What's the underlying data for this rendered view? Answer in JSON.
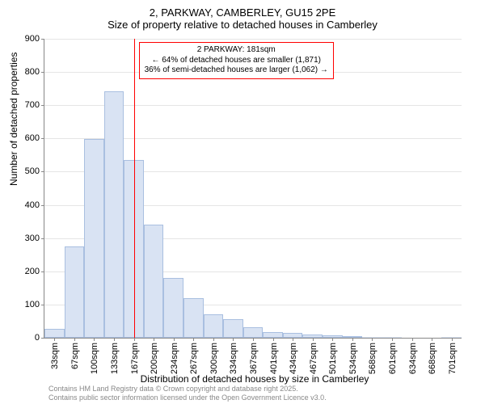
{
  "title_main": "2, PARKWAY, CAMBERLEY, GU15 2PE",
  "title_sub": "Size of property relative to detached houses in Camberley",
  "ylabel": "Number of detached properties",
  "xlabel": "Distribution of detached houses by size in Camberley",
  "footer_line1": "Contains HM Land Registry data © Crown copyright and database right 2025.",
  "footer_line2": "Contains public sector information licensed under the Open Government Licence v3.0.",
  "chart": {
    "type": "histogram",
    "ylim": [
      0,
      900
    ],
    "ytick_step": 100,
    "ymax": 900,
    "xticks": [
      "33sqm",
      "67sqm",
      "100sqm",
      "133sqm",
      "167sqm",
      "200sqm",
      "234sqm",
      "267sqm",
      "300sqm",
      "334sqm",
      "367sqm",
      "401sqm",
      "434sqm",
      "467sqm",
      "501sqm",
      "534sqm",
      "568sqm",
      "601sqm",
      "634sqm",
      "668sqm",
      "701sqm"
    ],
    "bars": [
      28,
      275,
      598,
      742,
      535,
      340,
      180,
      120,
      70,
      55,
      32,
      18,
      15,
      10,
      8,
      5,
      2,
      2,
      0,
      0,
      2
    ],
    "bar_fill": "#d9e3f3",
    "bar_stroke": "#a9bfe0",
    "grid_color": "#e5e5e5",
    "background": "#ffffff",
    "reference_line": {
      "bin_index": 4,
      "color": "#ff0000"
    },
    "annotation": {
      "line1": "2 PARKWAY: 181sqm",
      "line2": "← 64% of detached houses are smaller (1,871)",
      "line3": "36% of semi-detached houses are larger (1,062) →",
      "border_color": "#ff0000"
    }
  }
}
